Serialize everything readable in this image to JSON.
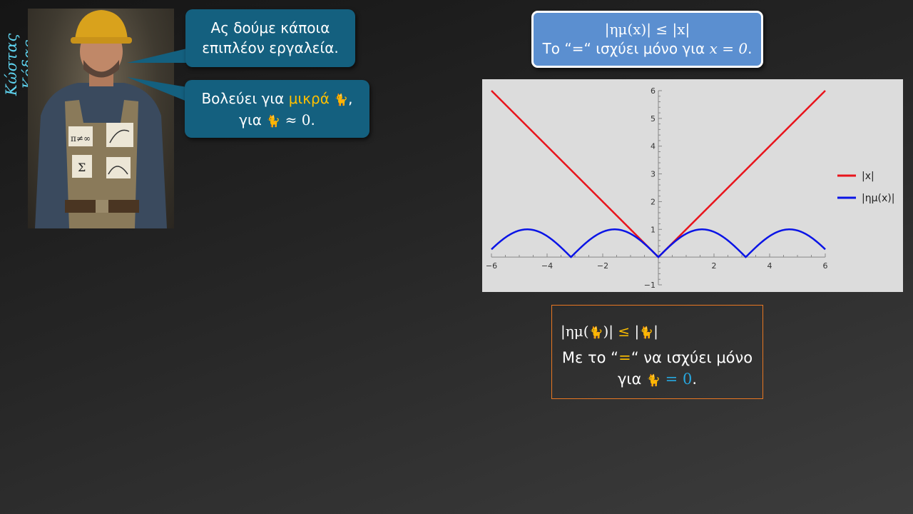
{
  "author": "Κώστας Κόδας",
  "photo": {
    "note1": "π≠∞",
    "note2": "Σ"
  },
  "bubble1": {
    "line1": "Ας δούμε κάποια",
    "line2": "επιπλέον εργαλεία."
  },
  "bubble2": {
    "pre": "Βολεύει για ",
    "highlight": "μικρά",
    "post1": ",",
    "line2_pre": "για",
    "line2_math": "≈ 0",
    "line2_post": "."
  },
  "top_box": {
    "line1": "|ημ(x)| ≤ |x|",
    "line2_pre": "Το “=“ ισχύει μόνο για ",
    "line2_math": "x = 0",
    "line2_post": "."
  },
  "bottom_box": {
    "l1_a": "|ημ(",
    "l1_b": ")|",
    "l1_le": "≤",
    "l1_c": "|",
    "l1_d": "|",
    "l2_a": "Με το “",
    "l2_eq": "=",
    "l2_b": "“ να ισχύει μόνο",
    "l3_a": "για",
    "l3_eq": "= 0",
    "l3_b": "."
  },
  "colors": {
    "abs_x": "#e8141c",
    "abs_sin": "#0a14e6",
    "bubble": "#14607f",
    "top_box": "#5b8fd0",
    "accent": "#ffc000"
  },
  "chart_data": {
    "type": "line",
    "xlim": [
      -6,
      6
    ],
    "ylim": [
      -1,
      6
    ],
    "x_ticks": [
      -6,
      -4,
      -2,
      2,
      4,
      6
    ],
    "x_tick_labels": [
      "−6",
      "−4",
      "−2",
      "2",
      "4",
      "6"
    ],
    "y_ticks": [
      -1,
      1,
      2,
      3,
      4,
      5,
      6
    ],
    "y_tick_labels": [
      "−1",
      "1",
      "2",
      "3",
      "4",
      "5",
      "6"
    ],
    "legend_position": "right",
    "series": [
      {
        "name": "|x|",
        "function": "abs(x)",
        "color": "#e8141c"
      },
      {
        "name": "|ημ(x)|",
        "function": "abs(sin(x))",
        "color": "#0a14e6"
      }
    ]
  }
}
